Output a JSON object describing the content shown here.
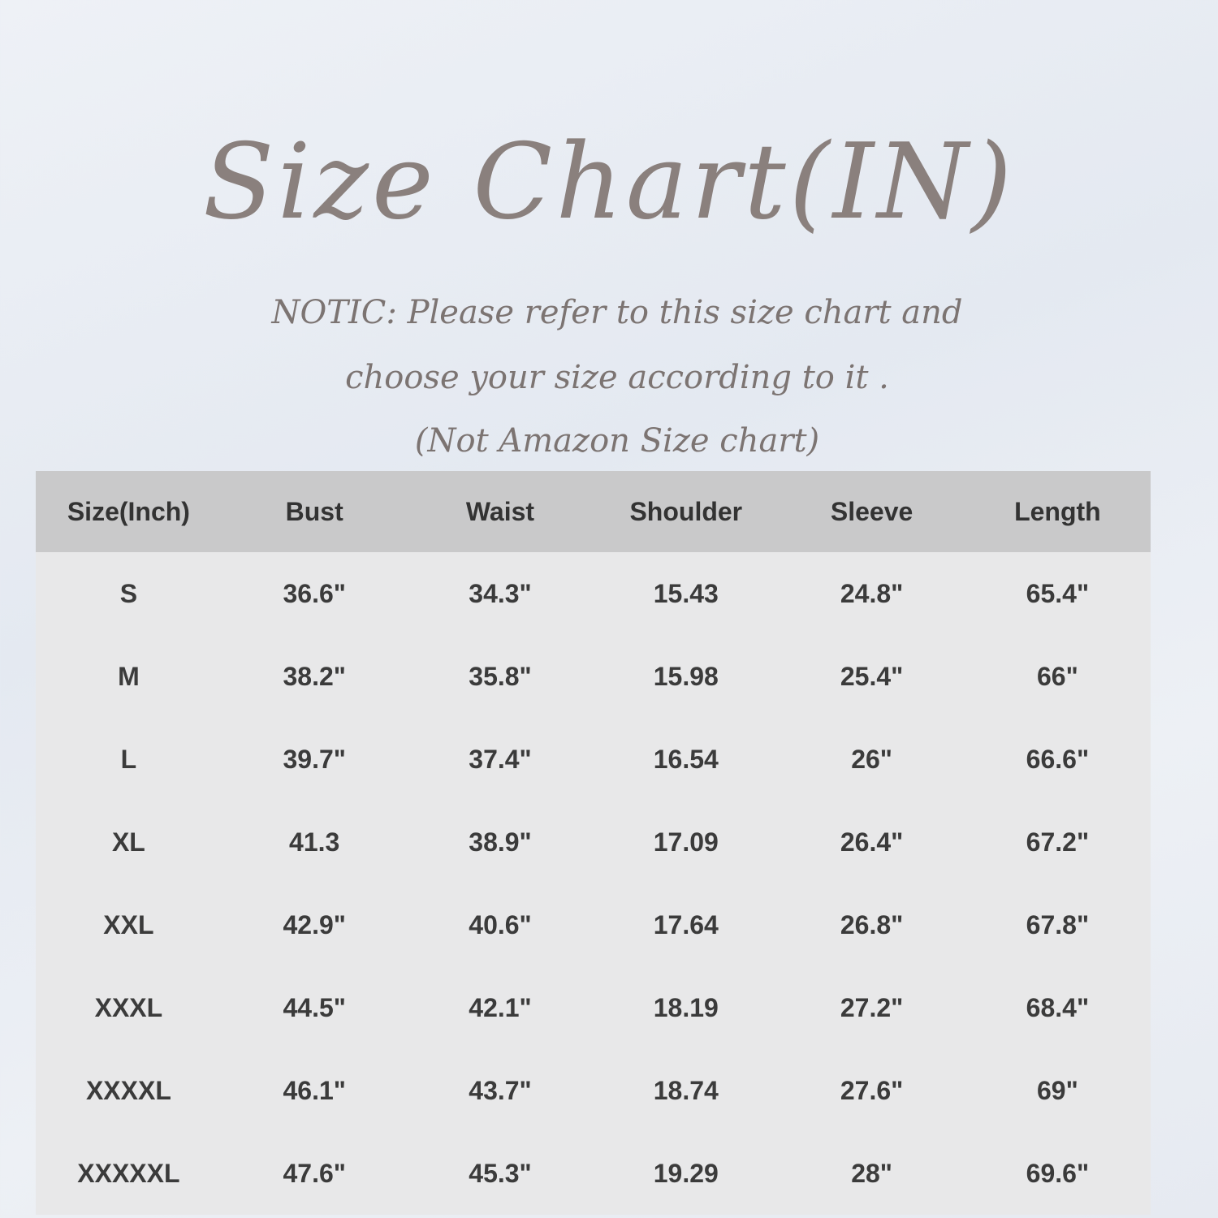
{
  "title": "Size Chart(IN)",
  "notice": {
    "line1": "NOTIC: Please refer to this size chart and",
    "line2": "choose your size according to it .",
    "line3": "(Not Amazon Size chart)"
  },
  "chart_data": {
    "type": "table",
    "columns": [
      "Size(Inch)",
      "Bust",
      "Waist",
      "Shoulder",
      "Sleeve",
      "Length"
    ],
    "rows": [
      [
        "S",
        "36.6\"",
        "34.3\"",
        "15.43",
        "24.8\"",
        "65.4\""
      ],
      [
        "M",
        "38.2\"",
        "35.8\"",
        "15.98",
        "25.4\"",
        "66\""
      ],
      [
        "L",
        "39.7\"",
        "37.4\"",
        "16.54",
        "26\"",
        "66.6\""
      ],
      [
        "XL",
        "41.3",
        "38.9\"",
        "17.09",
        "26.4\"",
        "67.2\""
      ],
      [
        "XXL",
        "42.9\"",
        "40.6\"",
        "17.64",
        "26.8\"",
        "67.8\""
      ],
      [
        "XXXL",
        "44.5\"",
        "42.1\"",
        "18.19",
        "27.2\"",
        "68.4\""
      ],
      [
        "XXXXL",
        "46.1\"",
        "43.7\"",
        "18.74",
        "27.6\"",
        "69\""
      ],
      [
        "XXXXXL",
        "47.6\"",
        "45.3\"",
        "19.29",
        "28\"",
        "69.6\""
      ]
    ]
  },
  "colors": {
    "title": "#8a807d",
    "header_bg": "#c9c9ca",
    "row_bg": "#e8e8e9",
    "text": "#3b3b3b"
  }
}
